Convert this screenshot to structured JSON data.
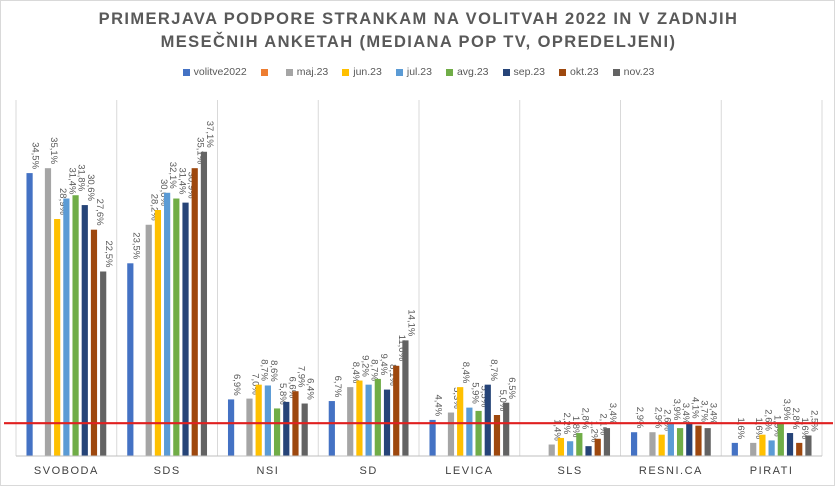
{
  "chart_data": {
    "type": "bar",
    "title_line1": "PRIMERJAVA PODPORE STRANKAM NA VOLITVAH 2022 IN V ZADNJIH",
    "title_line2": "MESEČNIH ANKETAH (MEDIANA POP TV, OPREDELJENI)",
    "categories": [
      "SVOBODA",
      "SDS",
      "NSI",
      "SD",
      "LEVICA",
      "SLS",
      "RESNI.CA",
      "PIRATI"
    ],
    "series": [
      {
        "name": "volitve2022",
        "color": "#4472c4",
        "values": [
          34.5,
          23.5,
          6.9,
          6.7,
          4.4,
          null,
          2.9,
          1.6
        ],
        "labels": [
          "34,5%",
          "23,5%",
          "6,9%",
          "6,7%",
          "4,4%",
          "",
          "2,9%",
          "1,6%"
        ]
      },
      {
        "name": "",
        "color": "#ed7d31",
        "values": [
          null,
          null,
          null,
          null,
          null,
          null,
          null,
          null
        ],
        "labels": [
          "",
          "",
          "",
          "",
          "",
          "",
          "",
          ""
        ]
      },
      {
        "name": "maj.23",
        "color": "#a5a5a5",
        "values": [
          35.1,
          28.2,
          7.0,
          8.4,
          5.3,
          1.4,
          2.9,
          1.6
        ],
        "labels": [
          "35,1%",
          "28,2%",
          "7,0%",
          "8,4%",
          "5,3%",
          "1,4%",
          "2,9%",
          "1,6%"
        ]
      },
      {
        "name": "jun.23",
        "color": "#ffc000",
        "values": [
          28.9,
          30.0,
          8.7,
          9.2,
          8.4,
          2.2,
          2.6,
          2.6
        ],
        "labels": [
          "28,9%",
          "30,0%",
          "8,7%",
          "9,2%",
          "8,4%",
          "2,2%",
          "2,6%",
          "2,6%"
        ]
      },
      {
        "name": "jul.23",
        "color": "#5b9bd5",
        "values": [
          31.4,
          32.1,
          8.6,
          8.7,
          5.9,
          1.8,
          3.9,
          1.9
        ],
        "labels": [
          "31,4%",
          "32,1%",
          "8,6%",
          "8,7%",
          "5,9%",
          "1,8%",
          "3,9%",
          "1,9%"
        ]
      },
      {
        "name": "avg.23",
        "color": "#70ad47",
        "values": [
          31.8,
          31.4,
          5.8,
          9.4,
          5.5,
          2.8,
          3.4,
          3.9
        ],
        "labels": [
          "31,8%",
          "31,4%",
          "5,8%",
          "9,4%",
          "5,5%",
          "2,8%",
          "3,4%",
          "3,9%"
        ]
      },
      {
        "name": "sep.23",
        "color": "#264478",
        "values": [
          30.6,
          30.9,
          6.6,
          8.1,
          8.7,
          1.2,
          4.1,
          2.8
        ],
        "labels": [
          "30,6%",
          "30,9%",
          "6,6%",
          "8,1%",
          "8,7%",
          "1,2%",
          "4,1%",
          "2,8%"
        ]
      },
      {
        "name": "okt.23",
        "color": "#9e480e",
        "values": [
          27.6,
          35.1,
          7.9,
          11.0,
          5.0,
          2.1,
          3.7,
          1.6
        ],
        "labels": [
          "27,6%",
          "35,1%",
          "7,9%",
          "11,0%",
          "5,0%",
          "2,1%",
          "3,7%",
          "1,6%"
        ]
      },
      {
        "name": "nov.23",
        "color": "#636363",
        "values": [
          22.5,
          37.1,
          6.4,
          14.1,
          6.5,
          3.4,
          3.4,
          2.5
        ],
        "labels": [
          "22,5%",
          "37,1%",
          "6,4%",
          "14,1%",
          "6,5%",
          "3,4%",
          "3,4%",
          "2,5%"
        ]
      }
    ],
    "ylim": [
      0,
      40
    ],
    "threshold": {
      "value": 4.0,
      "color": "#e02020"
    },
    "grid": false,
    "legend_position": "top"
  }
}
